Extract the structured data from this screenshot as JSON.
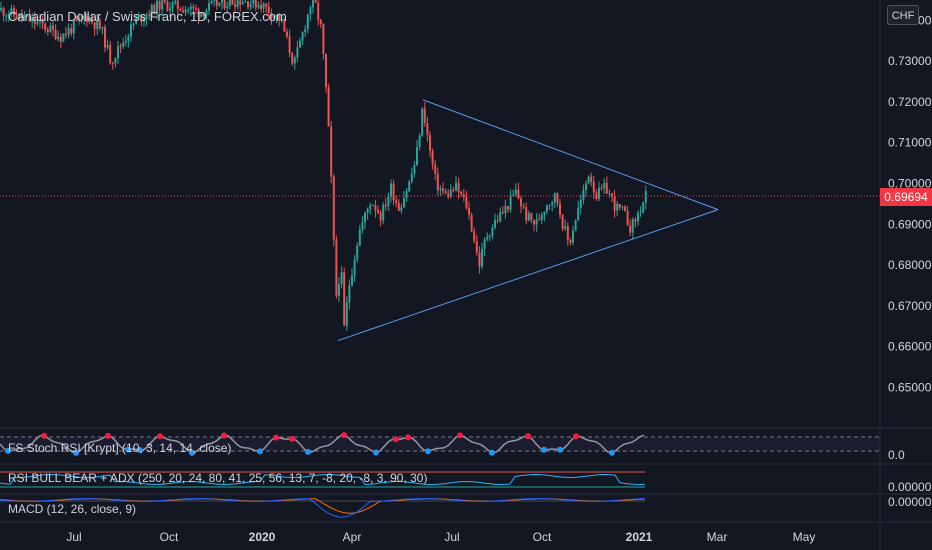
{
  "header": {
    "title": "Canadian Dollar / Swiss Franc, 1D, FOREX.com",
    "currency_button": "CHF",
    "last_price": "0.69694"
  },
  "indicators": [
    {
      "label": "FS Stoch RSI [Krypt] (10, 3, 14, 14, close)",
      "axis_value": "0.0"
    },
    {
      "label": "RSI BULL BEAR + ADX (250, 20, 24, 80, 41, 25, 56, 13, 7, -8, 20, -8, 3, 90, 30)",
      "axis_value": "0.00000"
    },
    {
      "label": "MACD (12, 26, close, 9)",
      "axis_value": "0.00000"
    }
  ],
  "colors": {
    "background": "#131722",
    "up": "#26a69a",
    "down": "#ef5350",
    "trendline": "#5b9cf6",
    "price_line": "#f23645",
    "stoch_line": "#9598a1",
    "stoch_high_dot": "#ff1744",
    "stoch_low_dot": "#2196f3",
    "macd_line": "#2962ff",
    "signal_line": "#ff6d00"
  },
  "chart_data": {
    "type": "candlestick",
    "y_ticks": [
      "0.74000",
      "0.73000",
      "0.72000",
      "0.71000",
      "0.70000",
      "0.69000",
      "0.68000",
      "0.67000",
      "0.66000",
      "0.65000"
    ],
    "ylim": [
      0.643,
      0.7465
    ],
    "x_ticks": [
      "Jul",
      "Oct",
      "2020",
      "Apr",
      "Jul",
      "Oct",
      "2021",
      "Mar",
      "May"
    ],
    "last_price": 0.69694,
    "close_path": [
      [
        0,
        0.7425
      ],
      [
        40,
        0.739
      ],
      [
        60,
        0.736
      ],
      [
        85,
        0.741
      ],
      [
        100,
        0.738
      ],
      [
        110,
        0.73
      ],
      [
        120,
        0.734
      ],
      [
        135,
        0.74
      ],
      [
        160,
        0.744
      ],
      [
        185,
        0.743
      ],
      [
        200,
        0.742
      ],
      [
        215,
        0.744
      ],
      [
        240,
        0.745
      ],
      [
        260,
        0.744
      ],
      [
        280,
        0.74
      ],
      [
        293,
        0.729
      ],
      [
        303,
        0.738
      ],
      [
        312,
        0.746
      ],
      [
        320,
        0.738
      ],
      [
        326,
        0.72
      ],
      [
        330,
        0.702
      ],
      [
        335,
        0.672
      ],
      [
        340,
        0.68
      ],
      [
        343,
        0.664
      ],
      [
        348,
        0.675
      ],
      [
        358,
        0.688
      ],
      [
        370,
        0.696
      ],
      [
        380,
        0.692
      ],
      [
        390,
        0.699
      ],
      [
        398,
        0.694
      ],
      [
        408,
        0.7
      ],
      [
        415,
        0.706
      ],
      [
        422,
        0.719
      ],
      [
        428,
        0.709
      ],
      [
        435,
        0.7
      ],
      [
        445,
        0.697
      ],
      [
        455,
        0.699
      ],
      [
        465,
        0.695
      ],
      [
        472,
        0.688
      ],
      [
        478,
        0.68
      ],
      [
        485,
        0.687
      ],
      [
        495,
        0.691
      ],
      [
        505,
        0.694
      ],
      [
        515,
        0.698
      ],
      [
        525,
        0.692
      ],
      [
        535,
        0.69
      ],
      [
        545,
        0.695
      ],
      [
        555,
        0.697
      ],
      [
        562,
        0.69
      ],
      [
        568,
        0.685
      ],
      [
        575,
        0.692
      ],
      [
        583,
        0.698
      ],
      [
        588,
        0.703
      ],
      [
        595,
        0.697
      ],
      [
        605,
        0.699
      ],
      [
        615,
        0.694
      ],
      [
        622,
        0.693
      ],
      [
        630,
        0.689
      ],
      [
        638,
        0.693
      ],
      [
        645,
        0.6969
      ]
    ],
    "trendlines": [
      {
        "name": "upper",
        "from": [
          423,
          0.7205
        ],
        "to": [
          718,
          0.6936
        ]
      },
      {
        "name": "lower",
        "from": [
          338,
          0.6615
        ],
        "to": [
          718,
          0.6936
        ]
      }
    ]
  }
}
